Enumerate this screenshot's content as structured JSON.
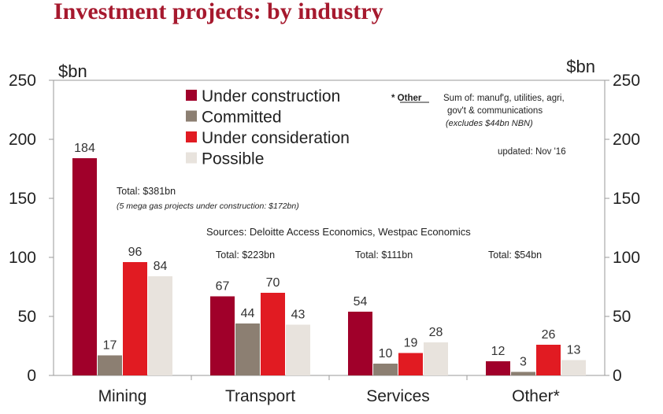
{
  "colors": {
    "title": "#a6192e",
    "under_construction": "#a0002a",
    "committed": "#8c7f72",
    "under_consideration": "#e11b22",
    "possible": "#e8e3dd"
  },
  "chart_data": {
    "type": "bar",
    "title": "Investment projects: by industry",
    "ylabel_left": "$bn",
    "ylabel_right": "$bn",
    "ylim": [
      0,
      250
    ],
    "yticks": [
      0,
      50,
      100,
      150,
      200,
      250
    ],
    "categories": [
      "Mining",
      "Transport",
      "Services",
      "Other*"
    ],
    "series": [
      {
        "name": "Under construction",
        "color": "#a0002a",
        "values": [
          184,
          67,
          54,
          12
        ]
      },
      {
        "name": "Committed",
        "color": "#8c7f72",
        "values": [
          17,
          44,
          10,
          3
        ]
      },
      {
        "name": "Under consideration",
        "color": "#e11b22",
        "values": [
          96,
          70,
          19,
          26
        ]
      },
      {
        "name": "Possible",
        "color": "#e8e3dd",
        "values": [
          84,
          43,
          28,
          13
        ]
      }
    ],
    "legend_position": "top-center",
    "grid": false,
    "annotations": {
      "totals": [
        "Total: $381bn",
        "Total: $223bn",
        "Total: $111bn",
        "Total: $54bn"
      ],
      "mining_note": "(5 mega gas projects under construction: $172bn)",
      "sources": "Sources: Deloitte Access Economics, Westpac Economics",
      "other_key": "* Other",
      "other_note_1": "Sum of: manuf'g, utilities, agri,",
      "other_note_2": "gov't & communications",
      "other_note_3": "(excludes $44bn NBN)",
      "updated": "updated: Nov '16"
    }
  }
}
